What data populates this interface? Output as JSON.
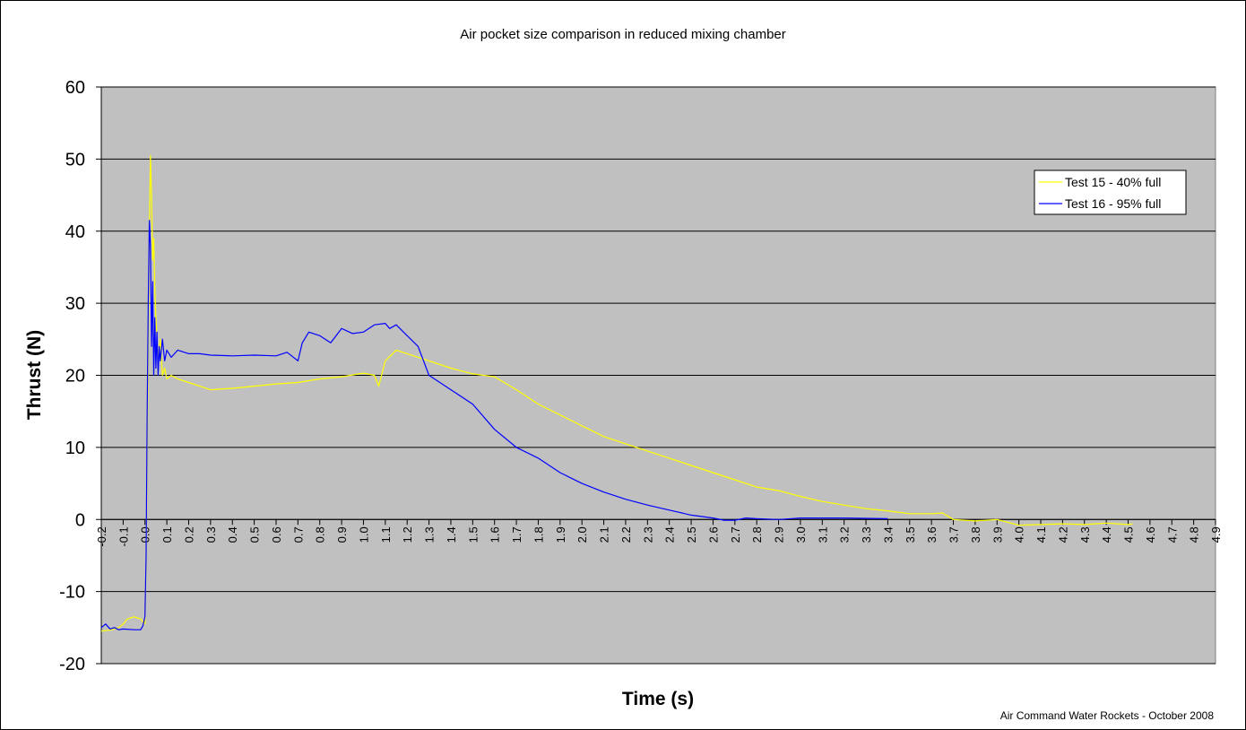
{
  "chart_data": {
    "type": "line",
    "title": "Air pocket size comparison in reduced mixing chamber",
    "xlabel": "Time (s)",
    "ylabel": "Thrust (N)",
    "credit": "Air Command Water Rockets - October 2008",
    "ylim": [
      -20,
      60
    ],
    "yticks": [
      -20,
      -10,
      0,
      10,
      20,
      30,
      40,
      50,
      60
    ],
    "ytick_labels": [
      "-20",
      "-10",
      "0",
      "10",
      "20",
      "30",
      "40",
      "50",
      "60"
    ],
    "xlim": [
      -0.2,
      4.9
    ],
    "xtick_labels": [
      "-0.2",
      "-0.1",
      "0.0",
      "0.1",
      "0.2",
      "0.3",
      "0.4",
      "0.5",
      "0.6",
      "0.7",
      "0.8",
      "0.9",
      "1.0",
      "1.1",
      "1.2",
      "1.3",
      "1.4",
      "1.5",
      "1.6",
      "1.7",
      "1.8",
      "1.9",
      "2.0",
      "2.1",
      "2.2",
      "2.3",
      "2.4",
      "2.5",
      "2.6",
      "2.7",
      "2.8",
      "2.9",
      "3.0",
      "3.1",
      "3.2",
      "3.3",
      "3.4",
      "3.5",
      "3.6",
      "3.7",
      "3.8",
      "3.9",
      "4.0",
      "4.1",
      "4.2",
      "4.3",
      "4.4",
      "4.5",
      "4.6",
      "4.7",
      "4.8",
      "4.9"
    ],
    "grid": "horizontal",
    "plot_background": "#c0c0c0",
    "legend_position": "top-right",
    "series": [
      {
        "name": "Test 15 - 40% full",
        "color": "#ffff00",
        "x": [
          -0.2,
          -0.15,
          -0.12,
          -0.1,
          -0.08,
          -0.05,
          -0.02,
          0.0,
          0.005,
          0.01,
          0.015,
          0.02,
          0.025,
          0.03,
          0.035,
          0.04,
          0.045,
          0.05,
          0.06,
          0.07,
          0.08,
          0.09,
          0.1,
          0.12,
          0.15,
          0.2,
          0.25,
          0.3,
          0.4,
          0.5,
          0.6,
          0.7,
          0.8,
          0.9,
          1.0,
          1.05,
          1.07,
          1.1,
          1.15,
          1.2,
          1.3,
          1.4,
          1.5,
          1.6,
          1.7,
          1.8,
          1.9,
          2.0,
          2.1,
          2.2,
          2.3,
          2.4,
          2.5,
          2.6,
          2.7,
          2.8,
          2.9,
          3.0,
          3.1,
          3.2,
          3.3,
          3.4,
          3.5,
          3.6,
          3.65,
          3.7,
          3.8,
          3.9,
          4.0,
          4.1,
          4.2,
          4.3,
          4.4,
          4.5,
          4.52
        ],
        "y": [
          -15.5,
          -15.3,
          -15.0,
          -14.5,
          -13.8,
          -13.5,
          -13.8,
          -14.5,
          -5.0,
          10.0,
          25.0,
          40.0,
          50.5,
          45.0,
          36.0,
          39.0,
          32.0,
          28.0,
          22.0,
          25.0,
          20.0,
          21.0,
          19.5,
          20.0,
          19.5,
          19.0,
          18.5,
          18.0,
          18.2,
          18.5,
          18.8,
          19.0,
          19.5,
          19.8,
          20.3,
          20.0,
          18.5,
          22.0,
          23.5,
          23.0,
          22.0,
          21.0,
          20.2,
          19.8,
          18.0,
          16.0,
          14.5,
          13.0,
          11.5,
          10.5,
          9.5,
          8.5,
          7.5,
          6.5,
          5.5,
          4.5,
          4.0,
          3.2,
          2.5,
          2.0,
          1.5,
          1.2,
          0.8,
          0.8,
          0.9,
          0.0,
          -0.2,
          0.0,
          -0.8,
          -0.7,
          -0.6,
          -0.7,
          -0.5,
          -0.7,
          -0.6
        ]
      },
      {
        "name": "Test 16 - 95% full",
        "color": "#0000ff",
        "x": [
          -0.2,
          -0.18,
          -0.16,
          -0.14,
          -0.12,
          -0.1,
          -0.05,
          -0.02,
          -0.01,
          0.0,
          0.005,
          0.01,
          0.015,
          0.02,
          0.025,
          0.03,
          0.035,
          0.04,
          0.045,
          0.05,
          0.055,
          0.06,
          0.065,
          0.07,
          0.08,
          0.09,
          0.1,
          0.12,
          0.15,
          0.2,
          0.25,
          0.3,
          0.4,
          0.5,
          0.6,
          0.65,
          0.7,
          0.72,
          0.75,
          0.8,
          0.85,
          0.9,
          0.95,
          1.0,
          1.05,
          1.1,
          1.12,
          1.15,
          1.2,
          1.25,
          1.3,
          1.4,
          1.5,
          1.6,
          1.7,
          1.8,
          1.9,
          2.0,
          2.1,
          2.2,
          2.3,
          2.4,
          2.5,
          2.6,
          2.65,
          2.7,
          2.75,
          2.8,
          2.9,
          3.0,
          3.2,
          3.4
        ],
        "y": [
          -15.0,
          -14.5,
          -15.2,
          -15.0,
          -15.3,
          -15.2,
          -15.3,
          -15.3,
          -14.8,
          -13.5,
          -5.0,
          15.0,
          30.0,
          41.5,
          38.0,
          24.0,
          33.0,
          20.0,
          28.0,
          21.0,
          26.0,
          20.0,
          24.0,
          22.0,
          25.0,
          22.0,
          23.5,
          22.5,
          23.5,
          23.0,
          23.0,
          22.8,
          22.7,
          22.8,
          22.7,
          23.2,
          22.0,
          24.5,
          26.0,
          25.5,
          24.5,
          26.5,
          25.8,
          26.0,
          27.0,
          27.2,
          26.5,
          27.0,
          25.5,
          24.0,
          20.0,
          18.0,
          16.0,
          12.5,
          10.0,
          8.5,
          6.5,
          5.0,
          3.8,
          2.8,
          2.0,
          1.3,
          0.6,
          0.2,
          -0.1,
          -0.1,
          0.2,
          0.1,
          0.0,
          0.2,
          0.2,
          0.1
        ]
      }
    ]
  }
}
